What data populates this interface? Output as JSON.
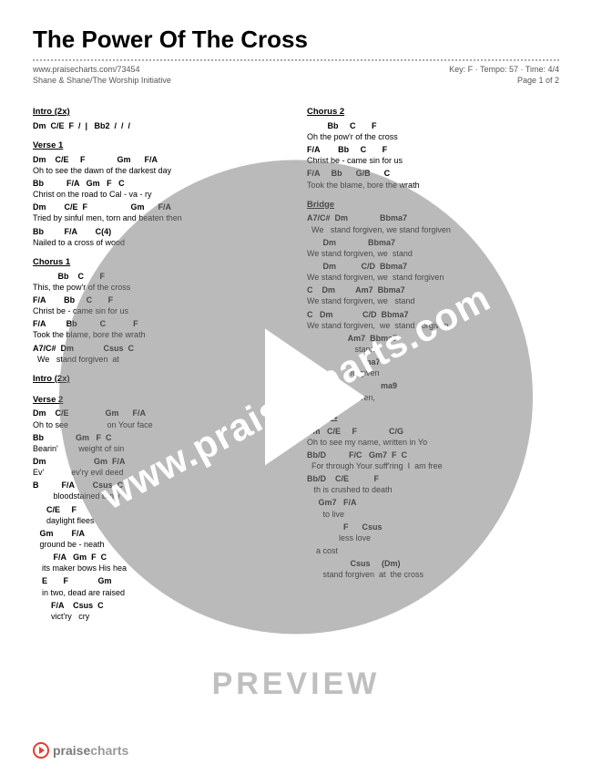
{
  "title": "The Power Of The Cross",
  "meta": {
    "url": "www.praisecharts.com/73454",
    "artist": "Shane & Shane/The Worship Initiative",
    "key": "Key: F · Tempo: 57 · Time: 4/4",
    "page": "Page 1 of 2"
  },
  "watermark": "www.praisecharts.com",
  "preview": "PREVIEW",
  "footer": "praisecharts",
  "left": [
    {
      "label": "Intro (2x)",
      "lines": [
        [
          "Dm  C/E  F  /  |   Bb2  /  /  /",
          ""
        ]
      ]
    },
    {
      "label": "Verse 1",
      "lines": [
        [
          "Dm    C/E     F              Gm      F/A",
          "Oh to see the dawn of the darkest day"
        ],
        [
          "Bb          F/A   Gm   F   C",
          "Christ on the road to Cal - va - ry"
        ],
        [
          "Dm        C/E  F                   Gm      F/A",
          "Tried by sinful men, torn and beaten then"
        ],
        [
          "Bb         F/A        C(4)",
          "Nailed to a cross of wood"
        ]
      ]
    },
    {
      "label": "Chorus 1",
      "lines": [
        [
          "           Bb    C       F",
          "This, the pow'r of the cross"
        ],
        [
          "F/A        Bb     C       F",
          "Christ be - came sin for us"
        ],
        [
          "F/A         Bb          C            F",
          "Took the blame, bore the wrath"
        ],
        [
          "A7/C#  Dm             Csus  C",
          "  We   stand forgiven  at"
        ]
      ]
    },
    {
      "label": "Intro (2x)",
      "lines": []
    },
    {
      "label": "Verse 2",
      "lines": [
        [
          "Dm    C/E                Gm      F/A",
          "Oh to see                 on Your face"
        ],
        [
          "Bb              Gm   F  C",
          "Bearin'         weight of sin"
        ],
        [
          "Dm                     Gm  F/A",
          "Ev'            ev'ry evil deed"
        ],
        [
          "B          F/A        Csus  C",
          "         bloodstained brow"
        ]
      ]
    },
    {
      "label": "",
      "lines": [
        [
          "      C/E     F",
          "      daylight flees"
        ],
        [
          "   Gm        F/A",
          "   ground be - neath"
        ],
        [
          "         F/A   Gm  F  C",
          "    its maker bows His hea"
        ],
        [
          "    E       F             Gm",
          "    in two, dead are raised"
        ],
        [
          "        F/A    Csus  C",
          "        vict'ry   cry"
        ]
      ]
    }
  ],
  "right": [
    {
      "label": "Chorus 2",
      "lines": [
        [
          "         Bb     C       F",
          "Oh the pow'r of the cross"
        ],
        [
          "F/A        Bb     C       F",
          "Christ be - came sin for us"
        ],
        [
          "F/A     Bb      G/B      C",
          "Took the blame, bore the wrath"
        ]
      ]
    },
    {
      "label": "Bridge",
      "lines": [
        [
          "A7/C#  Dm              Bbma7",
          "  We   stand forgiven, we stand forgiven"
        ],
        [
          "       Dm              Bbma7",
          "We stand forgiven, we  stand"
        ],
        [
          "       Dm           C/D  Bbma7",
          "We stand forgiven, we  stand forgiven"
        ],
        [
          "C    Dm         Am7  Bbma7",
          "We stand forgiven, we   stand"
        ],
        [
          "C   Dm             C/D  Bbma7",
          "We stand forgiven,  we  stand  forgiven"
        ],
        [
          "                  Am7  Bbma7",
          "                     stand"
        ],
        [
          "                         ma7",
          "                   forgiven"
        ],
        [
          "C   Dm                     ma9",
          "We stand forgiven,"
        ]
      ]
    },
    {
      "label": "Verse 4",
      "lines": [
        [
          "Dm   C/E     F              C/G",
          "Oh to see my name, written in Yo"
        ],
        [
          "Bb/D          F/C   Gm7  F  C",
          "  For through Your suff'ring  I  am free"
        ],
        [
          "Bb/D    C/E           F",
          "   th is crushed to death"
        ],
        [
          "     Gm7   F/A",
          "       to live"
        ],
        [
          "                F      Csus",
          "              less love"
        ]
      ]
    },
    {
      "label": "",
      "lines": [
        [
          "",
          "    a cost"
        ],
        [
          "                   Csus     (Dm)",
          "       stand forgiven  at  the cross"
        ]
      ]
    }
  ]
}
